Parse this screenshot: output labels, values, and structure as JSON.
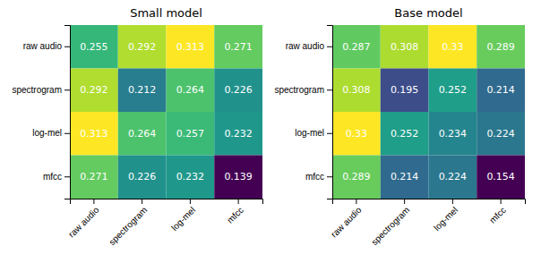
{
  "chart_data": [
    {
      "type": "heatmap",
      "title": "Small model",
      "categories": [
        "raw audio",
        "spectrogram",
        "log-mel",
        "mfcc"
      ],
      "values": [
        [
          0.255,
          0.292,
          0.313,
          0.271
        ],
        [
          0.292,
          0.212,
          0.264,
          0.226
        ],
        [
          0.313,
          0.264,
          0.257,
          0.232
        ],
        [
          0.271,
          0.226,
          0.232,
          0.139
        ]
      ],
      "color": "viridis",
      "data_labels": true
    },
    {
      "type": "heatmap",
      "title": "Base model",
      "categories": [
        "raw audio",
        "spectrogram",
        "log-mel",
        "mfcc"
      ],
      "values": [
        [
          0.287,
          0.308,
          0.33,
          0.289
        ],
        [
          0.308,
          0.195,
          0.252,
          0.214
        ],
        [
          0.33,
          0.252,
          0.234,
          0.224
        ],
        [
          0.289,
          0.214,
          0.224,
          0.154
        ]
      ],
      "color": "viridis",
      "data_labels": true
    }
  ]
}
